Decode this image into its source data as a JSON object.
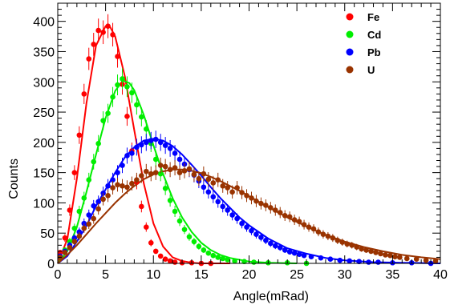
{
  "chart_data": {
    "type": "scatter",
    "title": "",
    "xlabel": "Angle(mRad)",
    "ylabel": "Counts",
    "xlim": [
      0,
      40
    ],
    "ylim": [
      0,
      430
    ],
    "x_ticks": [
      "0",
      "5",
      "10",
      "15",
      "20",
      "25",
      "30",
      "35",
      "40"
    ],
    "y_ticks": [
      "0",
      "50",
      "100",
      "150",
      "200",
      "250",
      "300",
      "350",
      "400"
    ],
    "grid": false,
    "legend_position": "top-right",
    "series": [
      {
        "name": "Fe",
        "color": "#ff0000",
        "points": [
          [
            0.25,
            18
          ],
          [
            0.75,
            42
          ],
          [
            1.25,
            88
          ],
          [
            1.75,
            150
          ],
          [
            2.25,
            212
          ],
          [
            2.75,
            280
          ],
          [
            3.25,
            338
          ],
          [
            3.75,
            362
          ],
          [
            4.25,
            385
          ],
          [
            4.75,
            382
          ],
          [
            5.25,
            392
          ],
          [
            5.75,
            378
          ],
          [
            6.25,
            342
          ],
          [
            6.75,
            296
          ],
          [
            7.25,
            243
          ],
          [
            7.75,
            186
          ],
          [
            8.25,
            134
          ],
          [
            8.75,
            94
          ],
          [
            9.25,
            60
          ],
          [
            9.75,
            34
          ],
          [
            10.25,
            20
          ],
          [
            10.75,
            12
          ],
          [
            11.25,
            7
          ],
          [
            11.75,
            4
          ],
          [
            12.25,
            2
          ],
          [
            13,
            1
          ],
          [
            14,
            1
          ],
          [
            15,
            0
          ],
          [
            16,
            0
          ]
        ],
        "fit": [
          [
            0,
            0
          ],
          [
            1,
            40
          ],
          [
            2,
            140
          ],
          [
            3,
            265
          ],
          [
            4,
            360
          ],
          [
            5,
            392
          ],
          [
            5.5,
            390
          ],
          [
            6,
            375
          ],
          [
            7,
            310
          ],
          [
            8,
            220
          ],
          [
            9,
            132
          ],
          [
            10,
            66
          ],
          [
            11,
            28
          ],
          [
            12,
            10
          ],
          [
            13,
            4
          ],
          [
            14,
            1
          ],
          [
            15,
            0
          ],
          [
            18,
            0
          ]
        ]
      },
      {
        "name": "Cd",
        "color": "#00ee00",
        "points": [
          [
            0.25,
            10
          ],
          [
            0.75,
            22
          ],
          [
            1.25,
            36
          ],
          [
            1.75,
            58
          ],
          [
            2.25,
            86
          ],
          [
            2.75,
            108
          ],
          [
            3.25,
            138
          ],
          [
            3.75,
            168
          ],
          [
            4.25,
            198
          ],
          [
            4.75,
            236
          ],
          [
            5.25,
            248
          ],
          [
            5.75,
            275
          ],
          [
            6.25,
            295
          ],
          [
            6.75,
            305
          ],
          [
            7.25,
            292
          ],
          [
            7.75,
            282
          ],
          [
            8.25,
            262
          ],
          [
            8.75,
            242
          ],
          [
            9.25,
            222
          ],
          [
            9.75,
            198
          ],
          [
            10.25,
            172
          ],
          [
            10.75,
            148
          ],
          [
            11.25,
            124
          ],
          [
            11.75,
            104
          ],
          [
            12.25,
            86
          ],
          [
            12.75,
            70
          ],
          [
            13.25,
            56
          ],
          [
            13.75,
            44
          ],
          [
            14.25,
            36
          ],
          [
            14.75,
            28
          ],
          [
            15.25,
            22
          ],
          [
            15.75,
            17
          ],
          [
            16.25,
            13
          ],
          [
            16.75,
            10
          ],
          [
            17.25,
            8
          ],
          [
            17.75,
            6
          ],
          [
            18.5,
            4
          ],
          [
            19.5,
            3
          ],
          [
            20.5,
            2
          ],
          [
            22,
            1
          ],
          [
            24,
            1
          ],
          [
            26,
            0
          ]
        ],
        "fit": [
          [
            0,
            0
          ],
          [
            1,
            20
          ],
          [
            2,
            60
          ],
          [
            3,
            118
          ],
          [
            4,
            180
          ],
          [
            5,
            240
          ],
          [
            6,
            285
          ],
          [
            6.8,
            302
          ],
          [
            7.5,
            298
          ],
          [
            8,
            286
          ],
          [
            9,
            245
          ],
          [
            10,
            195
          ],
          [
            11,
            148
          ],
          [
            12,
            108
          ],
          [
            13,
            76
          ],
          [
            14,
            52
          ],
          [
            15,
            34
          ],
          [
            16,
            22
          ],
          [
            17,
            14
          ],
          [
            18,
            9
          ],
          [
            20,
            3
          ],
          [
            22,
            1
          ],
          [
            25,
            0
          ]
        ]
      },
      {
        "name": "Pb",
        "color": "#0000ff",
        "points": [
          [
            0.25,
            12
          ],
          [
            0.75,
            20
          ],
          [
            1.25,
            30
          ],
          [
            1.75,
            42
          ],
          [
            2.25,
            52
          ],
          [
            2.75,
            66
          ],
          [
            3.25,
            80
          ],
          [
            3.75,
            95
          ],
          [
            4.25,
            102
          ],
          [
            4.75,
            116
          ],
          [
            5.25,
            128
          ],
          [
            5.75,
            138
          ],
          [
            6.25,
            150
          ],
          [
            6.75,
            162
          ],
          [
            7.25,
            178
          ],
          [
            7.75,
            182
          ],
          [
            8.25,
            192
          ],
          [
            8.75,
            196
          ],
          [
            9.25,
            200
          ],
          [
            9.75,
            203
          ],
          [
            10.25,
            205
          ],
          [
            10.75,
            200
          ],
          [
            11.25,
            195
          ],
          [
            11.75,
            190
          ],
          [
            12.25,
            182
          ],
          [
            12.75,
            172
          ],
          [
            13.25,
            164
          ],
          [
            13.75,
            155
          ],
          [
            14.25,
            146
          ],
          [
            14.75,
            136
          ],
          [
            15.25,
            126
          ],
          [
            15.75,
            118
          ],
          [
            16.25,
            110
          ],
          [
            16.75,
            102
          ],
          [
            17.25,
            94
          ],
          [
            17.75,
            88
          ],
          [
            18.25,
            80
          ],
          [
            18.75,
            74
          ],
          [
            19.25,
            66
          ],
          [
            19.75,
            60
          ],
          [
            20.25,
            54
          ],
          [
            20.75,
            48
          ],
          [
            21.25,
            43
          ],
          [
            21.75,
            38
          ],
          [
            22.25,
            33
          ],
          [
            22.75,
            29
          ],
          [
            23.25,
            26
          ],
          [
            23.75,
            22
          ],
          [
            24.25,
            19
          ],
          [
            24.75,
            17
          ],
          [
            25.25,
            15
          ],
          [
            25.75,
            13
          ],
          [
            26.5,
            11
          ],
          [
            27.5,
            9
          ],
          [
            28.5,
            7
          ],
          [
            29.5,
            5
          ],
          [
            30.5,
            4
          ],
          [
            31.5,
            3
          ],
          [
            32.5,
            2
          ],
          [
            33.5,
            2
          ],
          [
            35,
            1
          ],
          [
            37,
            1
          ],
          [
            39,
            0
          ]
        ],
        "fit": [
          [
            0,
            0
          ],
          [
            1,
            12
          ],
          [
            2,
            36
          ],
          [
            3,
            62
          ],
          [
            4,
            95
          ],
          [
            5,
            122
          ],
          [
            6,
            150
          ],
          [
            7,
            175
          ],
          [
            8,
            192
          ],
          [
            9,
            203
          ],
          [
            10,
            206
          ],
          [
            11,
            203
          ],
          [
            12,
            194
          ],
          [
            13,
            180
          ],
          [
            14,
            163
          ],
          [
            15,
            145
          ],
          [
            16,
            126
          ],
          [
            17,
            108
          ],
          [
            18,
            92
          ],
          [
            19,
            76
          ],
          [
            20,
            63
          ],
          [
            22,
            41
          ],
          [
            24,
            25
          ],
          [
            26,
            16
          ],
          [
            28,
            9
          ],
          [
            30,
            5
          ],
          [
            33,
            2
          ],
          [
            36,
            1
          ],
          [
            40,
            0
          ]
        ]
      },
      {
        "name": "U",
        "color": "#993300",
        "points": [
          [
            0.25,
            10
          ],
          [
            0.75,
            18
          ],
          [
            1.25,
            26
          ],
          [
            1.75,
            36
          ],
          [
            2.25,
            45
          ],
          [
            2.75,
            58
          ],
          [
            3.25,
            65
          ],
          [
            3.75,
            74
          ],
          [
            4.25,
            90
          ],
          [
            4.75,
            106
          ],
          [
            5.25,
            112
          ],
          [
            5.75,
            125
          ],
          [
            6.25,
            130
          ],
          [
            6.75,
            128
          ],
          [
            7.25,
            126
          ],
          [
            7.75,
            132
          ],
          [
            8.25,
            138
          ],
          [
            8.75,
            145
          ],
          [
            9.25,
            152
          ],
          [
            9.75,
            148
          ],
          [
            10.25,
            150
          ],
          [
            10.75,
            162
          ],
          [
            11.25,
            160
          ],
          [
            11.75,
            155
          ],
          [
            12.25,
            158
          ],
          [
            12.75,
            150
          ],
          [
            13.25,
            153
          ],
          [
            13.75,
            156
          ],
          [
            14.25,
            147
          ],
          [
            14.75,
            140
          ],
          [
            15.25,
            148
          ],
          [
            15.75,
            139
          ],
          [
            16.25,
            133
          ],
          [
            16.75,
            138
          ],
          [
            17.25,
            128
          ],
          [
            17.75,
            125
          ],
          [
            18.25,
            118
          ],
          [
            18.75,
            125
          ],
          [
            19.25,
            117
          ],
          [
            19.75,
            112
          ],
          [
            20.25,
            108
          ],
          [
            20.75,
            103
          ],
          [
            21.25,
            99
          ],
          [
            21.75,
            96
          ],
          [
            22.25,
            92
          ],
          [
            22.75,
            88
          ],
          [
            23.25,
            84
          ],
          [
            23.75,
            79
          ],
          [
            24.25,
            77
          ],
          [
            24.75,
            72
          ],
          [
            25.25,
            69
          ],
          [
            25.75,
            64
          ],
          [
            26.25,
            60
          ],
          [
            26.75,
            57
          ],
          [
            27.25,
            52
          ],
          [
            27.75,
            48
          ],
          [
            28.25,
            45
          ],
          [
            28.75,
            42
          ],
          [
            29.25,
            38
          ],
          [
            29.75,
            35
          ],
          [
            30.25,
            32
          ],
          [
            30.75,
            30
          ],
          [
            31.25,
            27
          ],
          [
            31.75,
            24
          ],
          [
            32.25,
            22
          ],
          [
            32.75,
            20
          ],
          [
            33.25,
            18
          ],
          [
            33.75,
            16
          ],
          [
            34.25,
            14
          ],
          [
            34.75,
            13
          ],
          [
            35.25,
            11
          ],
          [
            35.75,
            10
          ],
          [
            36.5,
            8
          ],
          [
            37.5,
            7
          ],
          [
            38.5,
            5
          ],
          [
            39.5,
            4
          ]
        ],
        "fit": [
          [
            0,
            0
          ],
          [
            1,
            14
          ],
          [
            2,
            30
          ],
          [
            3,
            48
          ],
          [
            4,
            66
          ],
          [
            5,
            83
          ],
          [
            6,
            100
          ],
          [
            7,
            115
          ],
          [
            8,
            128
          ],
          [
            9,
            139
          ],
          [
            10,
            147
          ],
          [
            11,
            152
          ],
          [
            12,
            155
          ],
          [
            13,
            155
          ],
          [
            14,
            153
          ],
          [
            15,
            149
          ],
          [
            16,
            143
          ],
          [
            17,
            136
          ],
          [
            18,
            128
          ],
          [
            19,
            120
          ],
          [
            20,
            111
          ],
          [
            22,
            93
          ],
          [
            24,
            76
          ],
          [
            26,
            61
          ],
          [
            28,
            47
          ],
          [
            30,
            36
          ],
          [
            32,
            27
          ],
          [
            34,
            20
          ],
          [
            36,
            14
          ],
          [
            38,
            10
          ],
          [
            40,
            7
          ]
        ]
      }
    ]
  }
}
